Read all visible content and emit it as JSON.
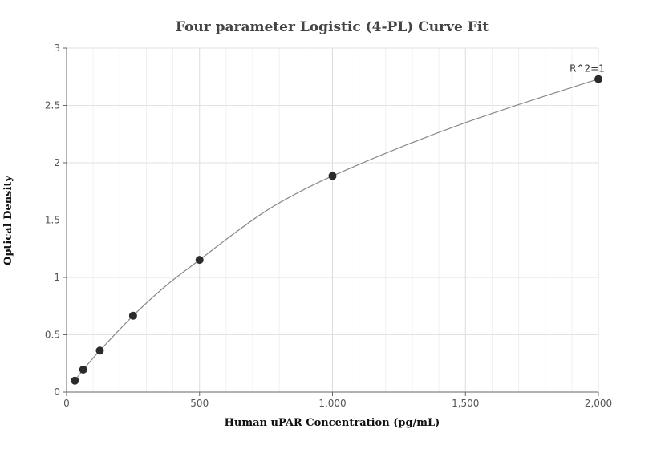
{
  "chart_data": {
    "type": "scatter",
    "title": "Four parameter Logistic (4-PL) Curve Fit",
    "xlabel": "Human uPAR Concentration (pg/mL)",
    "ylabel": "Optical Density",
    "xlim": [
      0,
      2000
    ],
    "ylim": [
      0,
      3
    ],
    "x_ticks": [
      0,
      500,
      1000,
      1500,
      2000
    ],
    "x_tick_labels": [
      "0",
      "500",
      "1,000",
      "1,500",
      "2,000"
    ],
    "y_ticks": [
      0,
      0.5,
      1,
      1.5,
      2,
      2.5,
      3
    ],
    "y_tick_labels": [
      "0",
      "0.5",
      "1",
      "1.5",
      "2",
      "2.5",
      "3"
    ],
    "grid": true,
    "series": [
      {
        "type": "scatter",
        "x": [
          31.25,
          62.5,
          125,
          250,
          500,
          1000,
          2000
        ],
        "y": [
          0.1,
          0.196,
          0.362,
          0.666,
          1.153,
          1.885,
          2.73
        ],
        "color": "#2b2b2b"
      },
      {
        "type": "line",
        "x": [
          31.25,
          62.5,
          125,
          250,
          375,
          500,
          625,
          750,
          875,
          1000,
          1250,
          1500,
          1750,
          2000
        ],
        "y": [
          0.1,
          0.196,
          0.362,
          0.666,
          0.93,
          1.153,
          1.375,
          1.58,
          1.745,
          1.885,
          2.13,
          2.35,
          2.545,
          2.73
        ],
        "color": "#888888"
      }
    ],
    "annotations": [
      {
        "text": "R^2=1",
        "x": 2000,
        "y": 2.73
      }
    ]
  }
}
